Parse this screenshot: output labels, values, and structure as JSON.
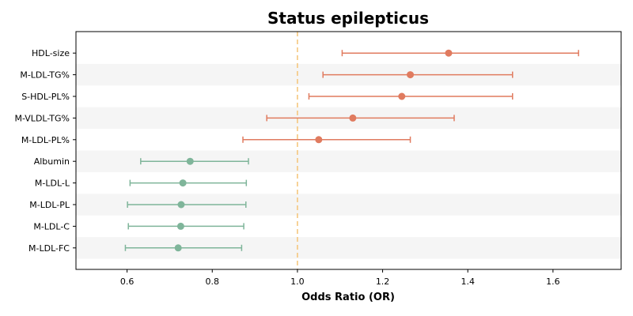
{
  "chart_data": {
    "type": "scatter",
    "title": "Status epilepticus",
    "xlabel": "Odds Ratio (OR)",
    "ylabel": "",
    "xlim": [
      0.48,
      1.76
    ],
    "xticks": [
      0.6,
      0.8,
      1.0,
      1.2,
      1.4,
      1.6
    ],
    "xtick_labels": [
      "0.6",
      "0.8",
      "1.0",
      "1.2",
      "1.4",
      "1.6"
    ],
    "reference_line": 1.0,
    "grid": false,
    "colors": {
      "risk": "#e07b5f",
      "protective": "#7fb59a",
      "reference": "#f5c77e",
      "band": "#f5f5f5"
    },
    "rows": [
      {
        "label": "HDL-size",
        "or": 1.355,
        "lower": 1.105,
        "upper": 1.66,
        "group": "risk"
      },
      {
        "label": "M-LDL-TG%",
        "or": 1.265,
        "lower": 1.06,
        "upper": 1.505,
        "group": "risk"
      },
      {
        "label": "S-HDL-PL%",
        "or": 1.245,
        "lower": 1.027,
        "upper": 1.505,
        "group": "risk"
      },
      {
        "label": "M-VLDL-TG%",
        "or": 1.13,
        "lower": 0.928,
        "upper": 1.368,
        "group": "risk"
      },
      {
        "label": "M-LDL-PL%",
        "or": 1.05,
        "lower": 0.872,
        "upper": 1.265,
        "group": "risk"
      },
      {
        "label": "Albumin",
        "or": 0.748,
        "lower": 0.632,
        "upper": 0.885,
        "group": "protective"
      },
      {
        "label": "M-LDL-L",
        "or": 0.731,
        "lower": 0.607,
        "upper": 0.88,
        "group": "protective"
      },
      {
        "label": "M-LDL-PL",
        "or": 0.727,
        "lower": 0.601,
        "upper": 0.879,
        "group": "protective"
      },
      {
        "label": "M-LDL-C",
        "or": 0.726,
        "lower": 0.603,
        "upper": 0.874,
        "group": "protective"
      },
      {
        "label": "M-LDL-FC",
        "or": 0.72,
        "lower": 0.596,
        "upper": 0.869,
        "group": "protective"
      }
    ]
  }
}
